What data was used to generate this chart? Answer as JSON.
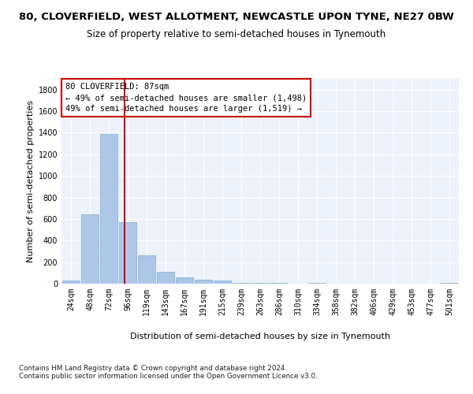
{
  "title_line1": "80, CLOVERFIELD, WEST ALLOTMENT, NEWCASTLE UPON TYNE, NE27 0BW",
  "title_line2": "Size of property relative to semi-detached houses in Tynemouth",
  "xlabel": "Distribution of semi-detached houses by size in Tynemouth",
  "ylabel": "Number of semi-detached properties",
  "categories": [
    "24sqm",
    "48sqm",
    "72sqm",
    "96sqm",
    "119sqm",
    "143sqm",
    "167sqm",
    "191sqm",
    "215sqm",
    "239sqm",
    "263sqm",
    "286sqm",
    "310sqm",
    "334sqm",
    "358sqm",
    "382sqm",
    "406sqm",
    "429sqm",
    "453sqm",
    "477sqm",
    "501sqm"
  ],
  "values": [
    30,
    640,
    1390,
    570,
    260,
    110,
    60,
    40,
    30,
    10,
    10,
    10,
    0,
    10,
    0,
    0,
    0,
    0,
    0,
    0,
    10
  ],
  "bar_color": "#aec6e8",
  "bar_edge_color": "#7bafd4",
  "vline_color": "#cc0000",
  "annotation_text": "80 CLOVERFIELD: 87sqm\n← 49% of semi-detached houses are smaller (1,498)\n49% of semi-detached houses are larger (1,519) →",
  "annotation_box_color": "#ffffff",
  "annotation_box_edge": "#cc0000",
  "ylim": [
    0,
    1900
  ],
  "yticks": [
    0,
    200,
    400,
    600,
    800,
    1000,
    1200,
    1400,
    1600,
    1800
  ],
  "background_color": "#eef2fb",
  "footer_text": "Contains HM Land Registry data © Crown copyright and database right 2024.\nContains public sector information licensed under the Open Government Licence v3.0.",
  "title_fontsize": 9.5,
  "subtitle_fontsize": 8.5,
  "axis_label_fontsize": 8,
  "tick_fontsize": 7,
  "annotation_fontsize": 7.5
}
